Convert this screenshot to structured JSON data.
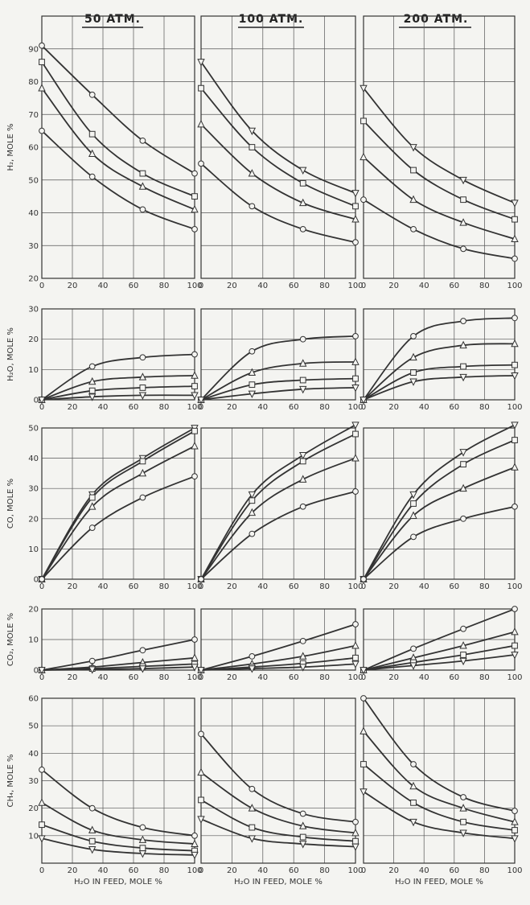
{
  "headers": [
    "50 ATM.",
    "100 ATM.",
    "200 ATM."
  ],
  "x_label": "H₂O IN FEED, MOLE %",
  "chart_data": {
    "type": "line",
    "columns": [
      "50 ATM.",
      "100 ATM.",
      "200 ATM."
    ],
    "xlim": [
      0,
      100
    ],
    "x_ticks": [
      0,
      20,
      40,
      60,
      80,
      100
    ],
    "rows": [
      {
        "ylabel": "H₂, MOLE %",
        "ylim": [
          20,
          100
        ],
        "y_ticks": [
          20,
          30,
          40,
          50,
          60,
          70,
          80,
          90
        ],
        "panels": [
          [
            {
              "marker": "circle",
              "x": [
                0,
                33,
                66,
                100
              ],
              "y": [
                91,
                76,
                62,
                52
              ]
            },
            {
              "marker": "square",
              "x": [
                0,
                33,
                66,
                100
              ],
              "y": [
                86,
                64,
                52,
                45
              ]
            },
            {
              "marker": "triangle",
              "x": [
                0,
                33,
                66,
                100
              ],
              "y": [
                78,
                58,
                48,
                41
              ]
            },
            {
              "marker": "circle",
              "x": [
                0,
                33,
                66,
                100
              ],
              "y": [
                65,
                51,
                41,
                35
              ]
            }
          ],
          [
            {
              "marker": "tri-down",
              "x": [
                0,
                33,
                66,
                100
              ],
              "y": [
                86,
                65,
                53,
                46
              ]
            },
            {
              "marker": "square",
              "x": [
                0,
                33,
                66,
                100
              ],
              "y": [
                78,
                60,
                49,
                42
              ]
            },
            {
              "marker": "triangle",
              "x": [
                0,
                33,
                66,
                100
              ],
              "y": [
                67,
                52,
                43,
                38
              ]
            },
            {
              "marker": "circle",
              "x": [
                0,
                33,
                66,
                100
              ],
              "y": [
                55,
                42,
                35,
                31
              ]
            }
          ],
          [
            {
              "marker": "tri-down",
              "x": [
                0,
                33,
                66,
                100
              ],
              "y": [
                78,
                60,
                50,
                43
              ]
            },
            {
              "marker": "square",
              "x": [
                0,
                33,
                66,
                100
              ],
              "y": [
                68,
                53,
                44,
                38
              ]
            },
            {
              "marker": "triangle",
              "x": [
                0,
                33,
                66,
                100
              ],
              "y": [
                57,
                44,
                37,
                32
              ]
            },
            {
              "marker": "circle",
              "x": [
                0,
                33,
                66,
                100
              ],
              "y": [
                44,
                35,
                29,
                26
              ]
            }
          ]
        ]
      },
      {
        "ylabel": "H₂O, MOLE %",
        "ylim": [
          0,
          30
        ],
        "y_ticks": [
          0,
          10,
          20,
          30
        ],
        "panels": [
          [
            {
              "marker": "circle",
              "x": [
                0,
                33,
                66,
                100
              ],
              "y": [
                0,
                11,
                14,
                15
              ]
            },
            {
              "marker": "triangle",
              "x": [
                0,
                33,
                66,
                100
              ],
              "y": [
                0,
                6,
                7.5,
                8
              ]
            },
            {
              "marker": "square",
              "x": [
                0,
                33,
                66,
                100
              ],
              "y": [
                0,
                3,
                4,
                4.5
              ]
            },
            {
              "marker": "tri-down",
              "x": [
                0,
                33,
                66,
                100
              ],
              "y": [
                0,
                1,
                1.5,
                1.5
              ]
            }
          ],
          [
            {
              "marker": "circle",
              "x": [
                0,
                33,
                66,
                100
              ],
              "y": [
                0,
                16,
                20,
                21
              ]
            },
            {
              "marker": "triangle",
              "x": [
                0,
                33,
                66,
                100
              ],
              "y": [
                0,
                9,
                12,
                12.5
              ]
            },
            {
              "marker": "square",
              "x": [
                0,
                33,
                66,
                100
              ],
              "y": [
                0,
                5,
                6.5,
                7
              ]
            },
            {
              "marker": "tri-down",
              "x": [
                0,
                33,
                66,
                100
              ],
              "y": [
                0,
                2,
                3.5,
                4
              ]
            }
          ],
          [
            {
              "marker": "circle",
              "x": [
                0,
                33,
                66,
                100
              ],
              "y": [
                0,
                21,
                26,
                27
              ]
            },
            {
              "marker": "triangle",
              "x": [
                0,
                33,
                66,
                100
              ],
              "y": [
                0,
                14,
                18,
                18.5
              ]
            },
            {
              "marker": "square",
              "x": [
                0,
                33,
                66,
                100
              ],
              "y": [
                0,
                9,
                11,
                11.5
              ]
            },
            {
              "marker": "tri-down",
              "x": [
                0,
                33,
                66,
                100
              ],
              "y": [
                0,
                6,
                7.5,
                8
              ]
            }
          ]
        ]
      },
      {
        "ylabel": "CO, MOLE %",
        "ylim": [
          0,
          50
        ],
        "y_ticks": [
          0,
          10,
          20,
          30,
          40,
          50
        ],
        "panels": [
          [
            {
              "marker": "tri-down",
              "x": [
                0,
                33,
                66,
                100
              ],
              "y": [
                0,
                28,
                40,
                50
              ]
            },
            {
              "marker": "square",
              "x": [
                0,
                33,
                66,
                100
              ],
              "y": [
                0,
                27,
                39,
                49
              ]
            },
            {
              "marker": "triangle",
              "x": [
                0,
                33,
                66,
                100
              ],
              "y": [
                0,
                24,
                35,
                44
              ]
            },
            {
              "marker": "circle",
              "x": [
                0,
                33,
                66,
                100
              ],
              "y": [
                0,
                17,
                27,
                34
              ]
            }
          ],
          [
            {
              "marker": "tri-down",
              "x": [
                0,
                33,
                66,
                100
              ],
              "y": [
                0,
                28,
                41,
                51
              ]
            },
            {
              "marker": "square",
              "x": [
                0,
                33,
                66,
                100
              ],
              "y": [
                0,
                26,
                39,
                48
              ]
            },
            {
              "marker": "triangle",
              "x": [
                0,
                33,
                66,
                100
              ],
              "y": [
                0,
                22,
                33,
                40
              ]
            },
            {
              "marker": "circle",
              "x": [
                0,
                33,
                66,
                100
              ],
              "y": [
                0,
                15,
                24,
                29
              ]
            }
          ],
          [
            {
              "marker": "tri-down",
              "x": [
                0,
                33,
                66,
                100
              ],
              "y": [
                0,
                28,
                42,
                51
              ]
            },
            {
              "marker": "square",
              "x": [
                0,
                33,
                66,
                100
              ],
              "y": [
                0,
                25,
                38,
                46
              ]
            },
            {
              "marker": "triangle",
              "x": [
                0,
                33,
                66,
                100
              ],
              "y": [
                0,
                21,
                30,
                37
              ]
            },
            {
              "marker": "circle",
              "x": [
                0,
                33,
                66,
                100
              ],
              "y": [
                0,
                14,
                20,
                24
              ]
            }
          ]
        ]
      },
      {
        "ylabel": "CO₂, MOLE %",
        "ylim": [
          0,
          20
        ],
        "y_ticks": [
          0,
          10,
          20
        ],
        "panels": [
          [
            {
              "marker": "circle",
              "x": [
                0,
                33,
                66,
                100
              ],
              "y": [
                0,
                3,
                6.5,
                10
              ]
            },
            {
              "marker": "triangle",
              "x": [
                0,
                33,
                66,
                100
              ],
              "y": [
                0,
                1,
                2.5,
                4
              ]
            },
            {
              "marker": "square",
              "x": [
                0,
                33,
                66,
                100
              ],
              "y": [
                0,
                0.5,
                1.2,
                2
              ]
            },
            {
              "marker": "tri-down",
              "x": [
                0,
                33,
                66,
                100
              ],
              "y": [
                0,
                0.2,
                0.5,
                1
              ]
            }
          ],
          [
            {
              "marker": "circle",
              "x": [
                0,
                33,
                66,
                100
              ],
              "y": [
                0,
                4.5,
                9.5,
                15
              ]
            },
            {
              "marker": "triangle",
              "x": [
                0,
                33,
                66,
                100
              ],
              "y": [
                0,
                2,
                4.5,
                8
              ]
            },
            {
              "marker": "square",
              "x": [
                0,
                33,
                66,
                100
              ],
              "y": [
                0,
                1,
                2.2,
                4
              ]
            },
            {
              "marker": "tri-down",
              "x": [
                0,
                33,
                66,
                100
              ],
              "y": [
                0,
                0.5,
                1,
                2
              ]
            }
          ],
          [
            {
              "marker": "circle",
              "x": [
                0,
                33,
                66,
                100
              ],
              "y": [
                0,
                7,
                13.5,
                20
              ]
            },
            {
              "marker": "triangle",
              "x": [
                0,
                33,
                66,
                100
              ],
              "y": [
                0,
                4,
                8,
                12.5
              ]
            },
            {
              "marker": "square",
              "x": [
                0,
                33,
                66,
                100
              ],
              "y": [
                0,
                2.5,
                5,
                8
              ]
            },
            {
              "marker": "tri-down",
              "x": [
                0,
                33,
                66,
                100
              ],
              "y": [
                0,
                1.5,
                3,
                5
              ]
            }
          ]
        ]
      },
      {
        "ylabel": "CH₄, MOLE %",
        "ylim": [
          0,
          60
        ],
        "y_ticks": [
          10,
          20,
          30,
          40,
          50,
          60
        ],
        "panels": [
          [
            {
              "marker": "circle",
              "x": [
                0,
                33,
                66,
                100
              ],
              "y": [
                34,
                20,
                13,
                10
              ]
            },
            {
              "marker": "triangle",
              "x": [
                0,
                33,
                66,
                100
              ],
              "y": [
                22,
                12,
                8.5,
                7
              ]
            },
            {
              "marker": "square",
              "x": [
                0,
                33,
                66,
                100
              ],
              "y": [
                14,
                8,
                5.5,
                4.5
              ]
            },
            {
              "marker": "tri-down",
              "x": [
                0,
                33,
                66,
                100
              ],
              "y": [
                9,
                5,
                3.5,
                3
              ]
            }
          ],
          [
            {
              "marker": "circle",
              "x": [
                0,
                33,
                66,
                100
              ],
              "y": [
                47,
                27,
                18,
                15
              ]
            },
            {
              "marker": "triangle",
              "x": [
                0,
                33,
                66,
                100
              ],
              "y": [
                33,
                20,
                13.5,
                11
              ]
            },
            {
              "marker": "square",
              "x": [
                0,
                33,
                66,
                100
              ],
              "y": [
                23,
                13,
                9.5,
                8
              ]
            },
            {
              "marker": "tri-down",
              "x": [
                0,
                33,
                66,
                100
              ],
              "y": [
                16,
                9,
                7,
                6
              ]
            }
          ],
          [
            {
              "marker": "circle",
              "x": [
                0,
                33,
                66,
                100
              ],
              "y": [
                60,
                36,
                24,
                19
              ]
            },
            {
              "marker": "triangle",
              "x": [
                0,
                33,
                66,
                100
              ],
              "y": [
                48,
                28,
                20,
                15
              ]
            },
            {
              "marker": "square",
              "x": [
                0,
                33,
                66,
                100
              ],
              "y": [
                36,
                22,
                15,
                12
              ]
            },
            {
              "marker": "tri-down",
              "x": [
                0,
                33,
                66,
                100
              ],
              "y": [
                26,
                15,
                11,
                9
              ]
            }
          ]
        ]
      }
    ]
  }
}
